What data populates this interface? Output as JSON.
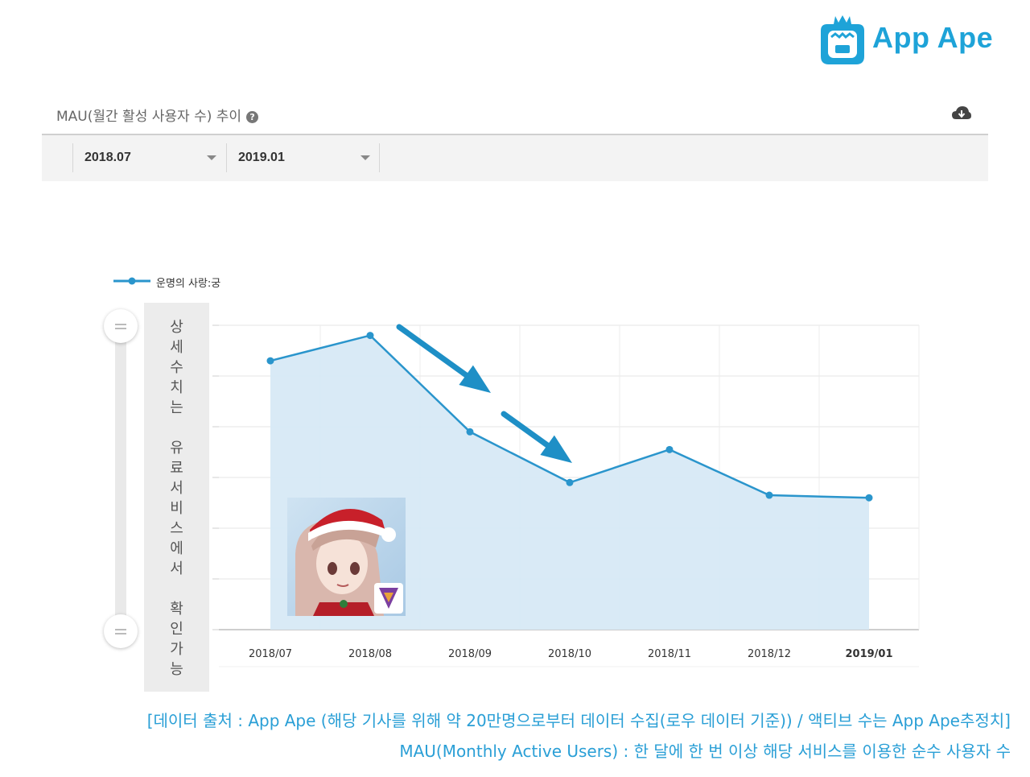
{
  "brand": {
    "name": "App Ape",
    "color": "#1ea3d8"
  },
  "panel": {
    "title": "MAU(월간 활성 사용자 수) 추이",
    "help_icon": "question-circle-icon",
    "download_icon": "cloud-download-icon"
  },
  "filters": {
    "start": "2018.07",
    "end": "2019.01"
  },
  "side_note": [
    "상",
    "세",
    "수",
    "치",
    "는",
    "",
    "유",
    "료",
    "서",
    "비",
    "스",
    "에",
    "서",
    "",
    "확",
    "인",
    "가",
    "능"
  ],
  "colors": {
    "line": "#2a95cc",
    "fill": "#d7e9f5",
    "arrow": "#1e8fc6"
  },
  "chart_data": {
    "type": "area",
    "categories": [
      "2018/07",
      "2018/08",
      "2018/09",
      "2018/10",
      "2018/11",
      "2018/12",
      "2019/01"
    ],
    "series": [
      {
        "name": "운명의 사랑:궁",
        "values": [
          5.3,
          5.8,
          3.9,
          2.9,
          3.55,
          2.65,
          2.6
        ]
      }
    ],
    "ylim": [
      0,
      6
    ],
    "y_tick_labels": "hidden",
    "grid": true,
    "legend": "top-left",
    "annotation": "downward trend arrows from 2018/08 to 2018/10"
  },
  "footer": {
    "line1": "[데이터 출처 : App Ape (해당 기사를 위해 약 20만명으로부터 데이터 수집(로우 데이터 기준)) / 액티브 수는 App Ape추정치]",
    "line2": "MAU(Monthly Active Users) : 한 달에 한 번 이상 해당 서비스를 이용한 순수 사용자 수"
  }
}
